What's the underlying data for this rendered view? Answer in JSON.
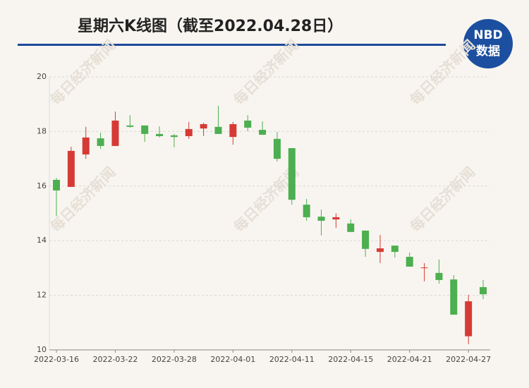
{
  "chart_data": {
    "type": "candlestick",
    "title": "星期六K线图（截至2022.04.28日）",
    "logo_top": "NBD",
    "logo_bottom": "数据",
    "watermark": "每日经济新闻",
    "categories": [
      "2022-03-16",
      null,
      null,
      null,
      "2022-03-22",
      null,
      null,
      null,
      "2022-03-28",
      null,
      null,
      null,
      "2022-04-01",
      null,
      null,
      null,
      "2022-04-11",
      null,
      null,
      null,
      "2022-04-15",
      null,
      null,
      null,
      "2022-04-21",
      null,
      null,
      null,
      "2022-04-27",
      null
    ],
    "open": [
      16.23,
      15.97,
      17.16,
      17.75,
      17.47,
      18.22,
      18.22,
      17.91,
      17.86,
      17.83,
      18.11,
      18.17,
      17.8,
      18.4,
      18.06,
      17.73,
      17.39,
      15.32,
      14.88,
      14.78,
      14.63,
      14.37,
      13.59,
      13.82,
      13.41,
      13.0,
      12.82,
      12.58,
      10.5,
      12.3
    ],
    "high": [
      16.3,
      17.44,
      18.17,
      17.96,
      18.73,
      18.6,
      18.22,
      18.19,
      17.91,
      18.35,
      18.32,
      18.94,
      18.35,
      18.6,
      18.37,
      17.98,
      17.39,
      15.53,
      15.14,
      15.0,
      14.78,
      14.37,
      14.21,
      13.82,
      13.57,
      13.18,
      13.31,
      12.74,
      12.02,
      12.56
    ],
    "low": [
      14.9,
      15.97,
      17.0,
      17.36,
      17.47,
      18.14,
      17.62,
      17.78,
      17.42,
      17.73,
      17.83,
      17.91,
      17.52,
      18.01,
      17.88,
      16.9,
      15.32,
      14.73,
      14.19,
      14.47,
      14.32,
      13.41,
      13.18,
      13.38,
      13.05,
      12.51,
      12.43,
      11.29,
      10.21,
      11.86
    ],
    "close": [
      15.84,
      17.29,
      17.78,
      17.47,
      18.4,
      18.17,
      17.91,
      17.83,
      17.8,
      18.09,
      18.27,
      17.91,
      18.27,
      18.14,
      17.88,
      17.0,
      15.5,
      14.86,
      14.73,
      14.86,
      14.32,
      13.7,
      13.72,
      13.59,
      13.05,
      13.02,
      12.56,
      11.29,
      11.78,
      12.04
    ],
    "up_color": "#d63a35",
    "down_color": "#4caf50",
    "ylim": [
      10,
      20
    ],
    "yticks": [
      10,
      12,
      14,
      16,
      18,
      20
    ],
    "grid": true
  }
}
